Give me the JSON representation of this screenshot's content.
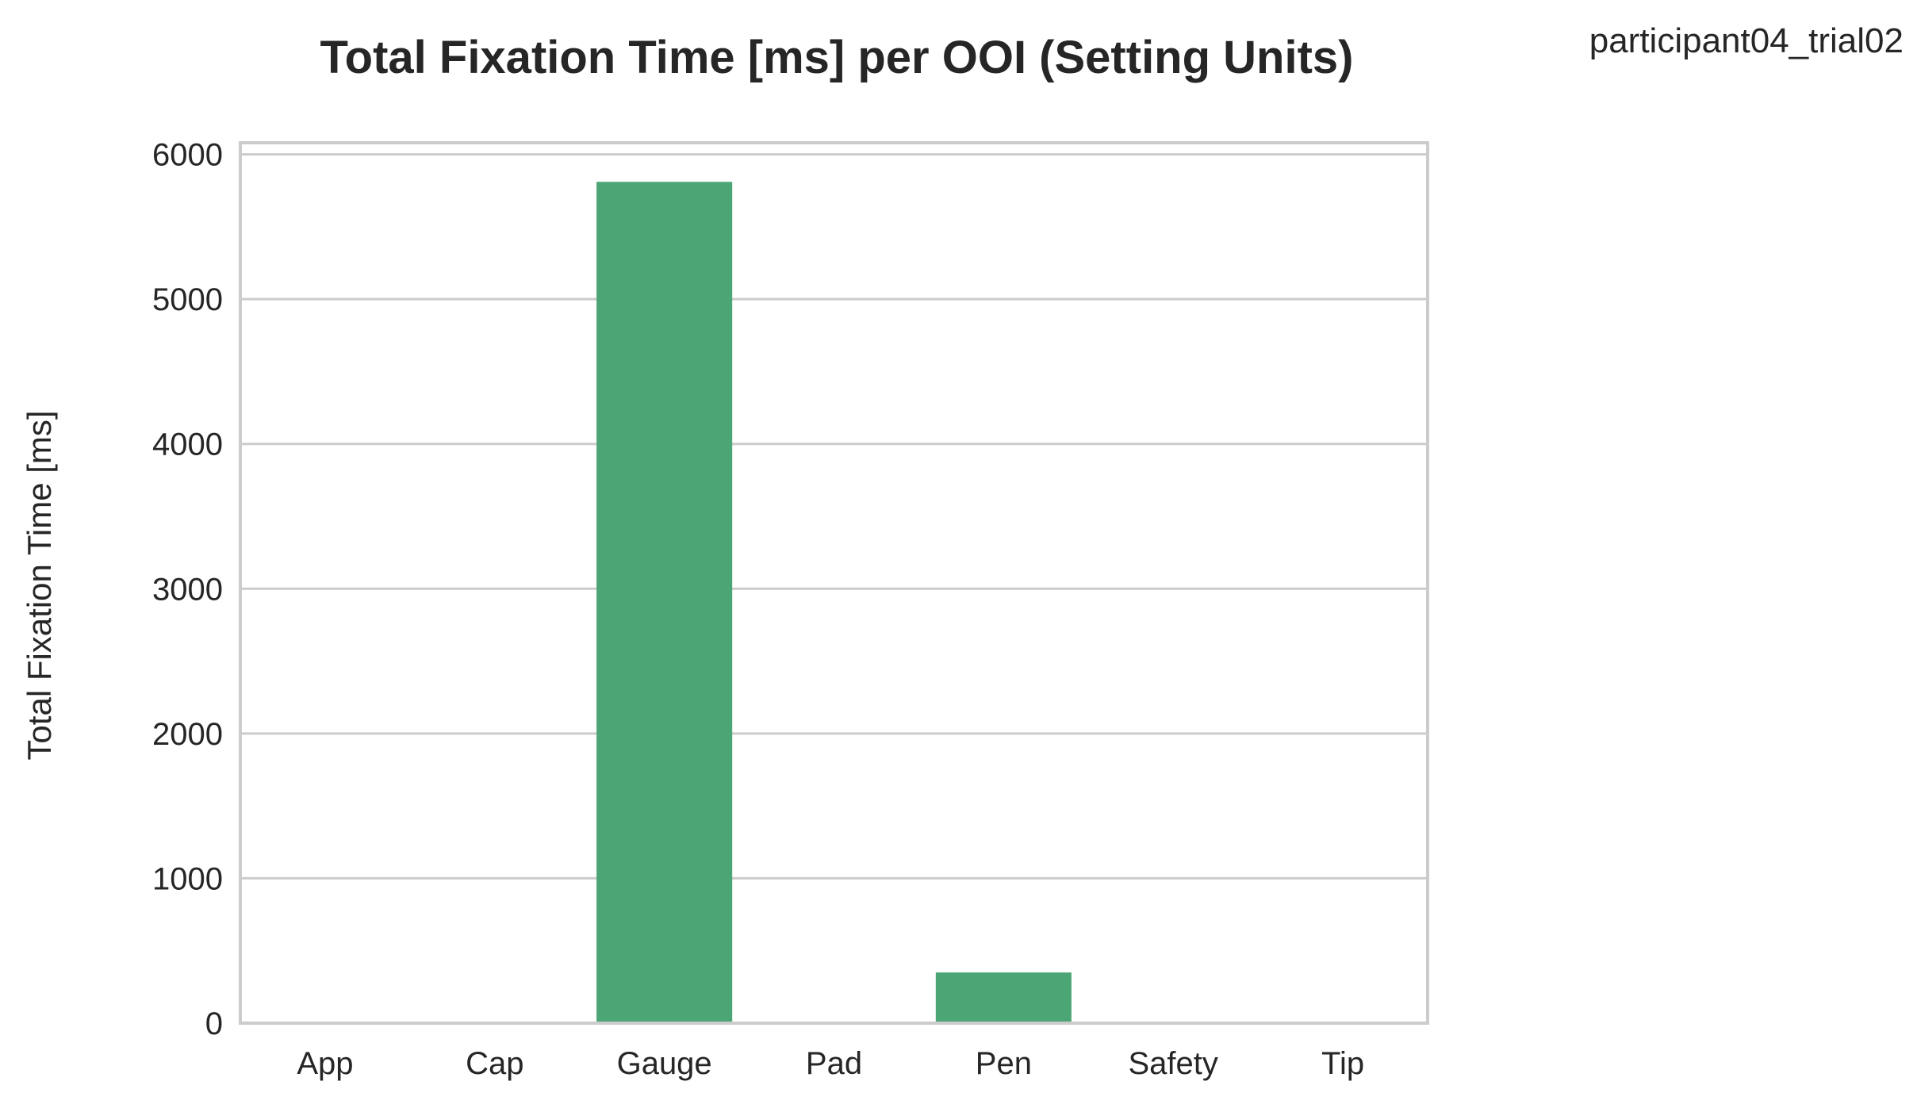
{
  "chart_data": {
    "type": "bar",
    "title": "Total Fixation Time [ms] per OOI (Setting Units)",
    "corner_label": "participant04_trial02",
    "xlabel": "",
    "ylabel": "Total Fixation Time [ms]",
    "categories": [
      "App",
      "Cap",
      "Gauge",
      "Pad",
      "Pen",
      "Safety",
      "Tip"
    ],
    "values": [
      0,
      0,
      5810,
      0,
      350,
      0,
      0
    ],
    "ylim": [
      0,
      6080
    ],
    "yticks": [
      0,
      1000,
      2000,
      3000,
      4000,
      5000,
      6000
    ],
    "grid": "horizontal",
    "bar_color": "#4ca575",
    "grid_color": "#cccccc",
    "frame_color": "#cccccc"
  }
}
